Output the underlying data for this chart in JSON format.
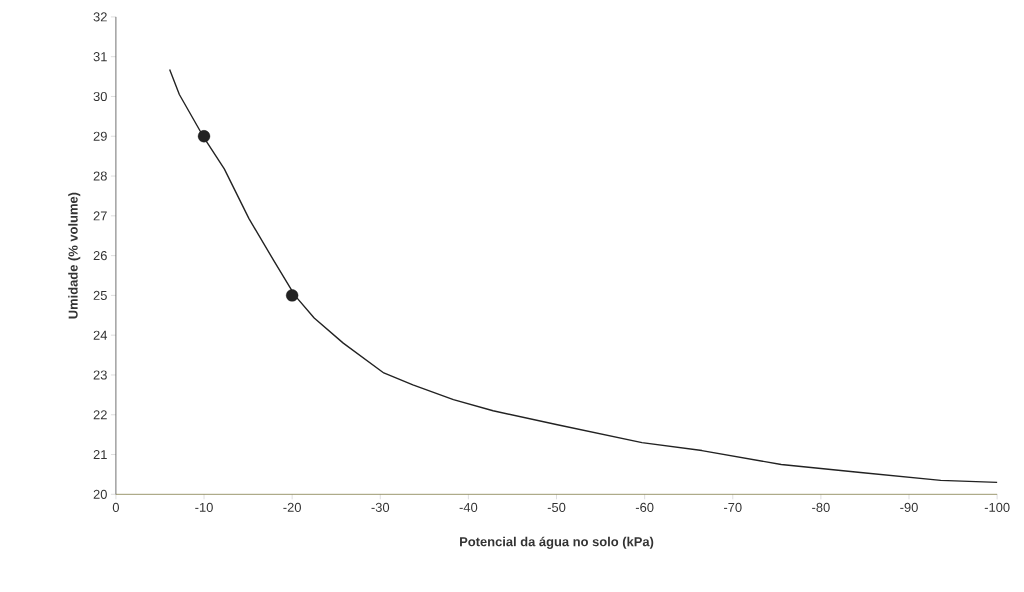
{
  "chart_data": {
    "type": "line",
    "xlabel": "Potencial da água no solo (kPa)",
    "ylabel": "Umidade (% volume)",
    "xlim": [
      0,
      -100
    ],
    "ylim": [
      20,
      32
    ],
    "xticks": [
      0,
      -10,
      -20,
      -30,
      -40,
      -50,
      -60,
      -70,
      -80,
      -90,
      -100
    ],
    "yticks": [
      20,
      21,
      22,
      23,
      24,
      25,
      26,
      27,
      28,
      29,
      30,
      31,
      32
    ],
    "series": [
      {
        "color": "#222222",
        "marker": "none",
        "x": [
          -6.1,
          -7.2,
          -9.9,
          -12.3,
          -15.1,
          -17.9,
          -20.3,
          -22.5,
          -25.8,
          -30.4,
          -33.7,
          -38.3,
          -42.8,
          -50.1,
          -59.7,
          -66.5,
          -75.5,
          -84.5,
          -93.6,
          -100
        ],
        "values": [
          30.68,
          30.05,
          29.0,
          28.18,
          26.93,
          25.88,
          25.0,
          24.43,
          23.8,
          23.05,
          22.75,
          22.38,
          22.1,
          21.75,
          21.3,
          21.1,
          20.75,
          20.55,
          20.35,
          20.3
        ]
      },
      {
        "type": "scatter",
        "color": "#222222",
        "marker": "circle",
        "x": [
          -10,
          -20
        ],
        "values": [
          29,
          25
        ]
      }
    ]
  }
}
